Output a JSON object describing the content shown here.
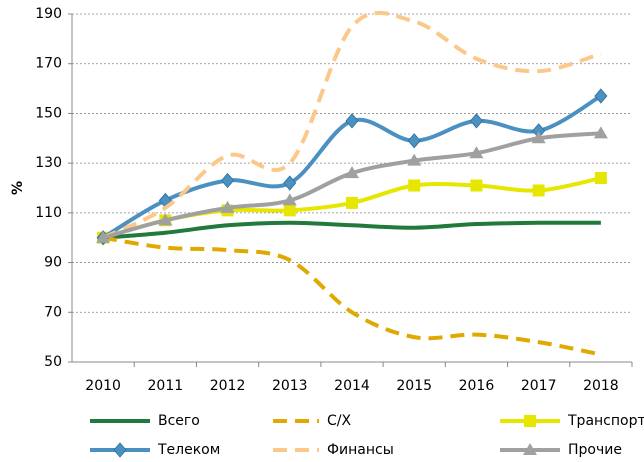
{
  "chart_data": {
    "type": "line",
    "y_label": "%",
    "categories": [
      "2010",
      "2011",
      "2012",
      "2013",
      "2014",
      "2015",
      "2016",
      "2017",
      "2018"
    ],
    "ylim": [
      50,
      190
    ],
    "yticks": [
      50,
      70,
      90,
      110,
      130,
      150,
      170,
      190
    ],
    "grid": true,
    "legend": "bottom",
    "series": [
      {
        "name": "Всего",
        "color": "#217a3c",
        "dash": false,
        "marker": "none",
        "values": [
          100,
          102,
          105,
          106,
          105,
          104,
          105.5,
          106,
          106
        ]
      },
      {
        "name": "С/Х",
        "color": "#e0a800",
        "dash": true,
        "marker": "none",
        "values": [
          100,
          96,
          95,
          91,
          70,
          60,
          61,
          58,
          53
        ]
      },
      {
        "name": "Транспорт",
        "color": "#e6e600",
        "dash": false,
        "marker": "square",
        "values": [
          100,
          107,
          111,
          111,
          114,
          121,
          121,
          119,
          124
        ]
      },
      {
        "name": "Телеком",
        "color": "#4a90c0",
        "dash": false,
        "marker": "diamond",
        "values": [
          100,
          115,
          123,
          122,
          147,
          139,
          147,
          143,
          157
        ]
      },
      {
        "name": "Финансы",
        "color": "#fcc88a",
        "dash": true,
        "marker": "none",
        "values": [
          100,
          112,
          133,
          130,
          185,
          187,
          172,
          167,
          174
        ]
      },
      {
        "name": "Прочие",
        "color": "#a0a0a0",
        "dash": false,
        "marker": "triangle",
        "values": [
          100,
          107,
          112,
          115,
          126,
          131,
          134,
          140,
          142
        ]
      }
    ]
  }
}
